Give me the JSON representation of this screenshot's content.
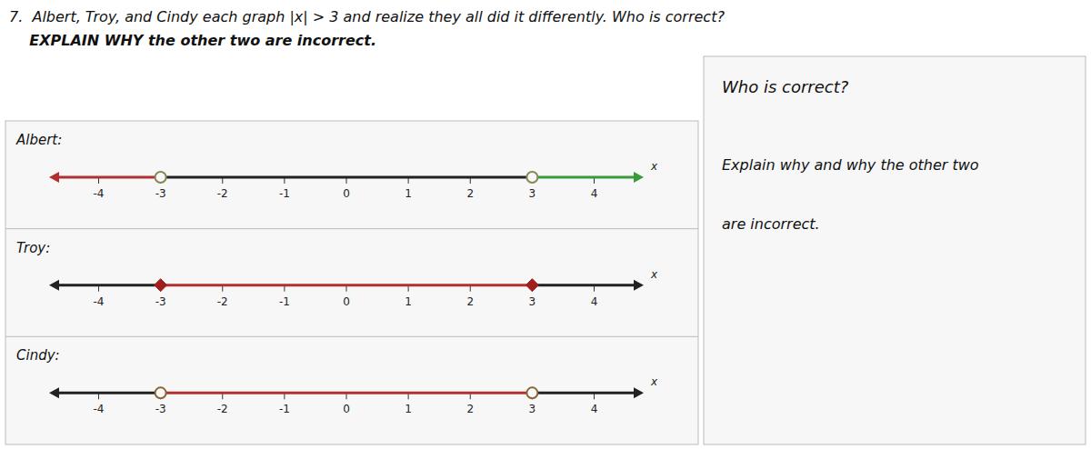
{
  "chart_data": {
    "type": "number_line",
    "title": "7.  Albert, Troy, and Cindy each graph |x| > 3 and realize they all did it differently. Who is correct?",
    "subtitle": "    EXPLAIN WHY the other two are incorrect.",
    "annotations": [
      "Who is correct?",
      "Explain why and why the other two",
      "are incorrect."
    ],
    "xlabel": "x",
    "xlim": [
      -4.8,
      4.8
    ],
    "xticks": [
      -4,
      -3,
      -2,
      -1,
      0,
      1,
      2,
      3,
      4
    ],
    "series": [
      {
        "name": "Albert:",
        "values": [
          -3,
          3
        ],
        "marker": "open-circle",
        "color": "#888855",
        "colors": [
          "#b03030",
          "#222222",
          "#3a9a3a"
        ]
      },
      {
        "name": "Troy:",
        "values": [
          -3,
          3
        ],
        "marker": "diamond",
        "color": "#a02020",
        "colors": [
          "#222222",
          "#b03030",
          "#222222"
        ]
      },
      {
        "name": "Cindy:",
        "values": [
          -3,
          3
        ],
        "marker": "open-circle",
        "color": "#886633",
        "colors": [
          "#222222",
          "#b03030",
          "#222222"
        ]
      }
    ]
  }
}
